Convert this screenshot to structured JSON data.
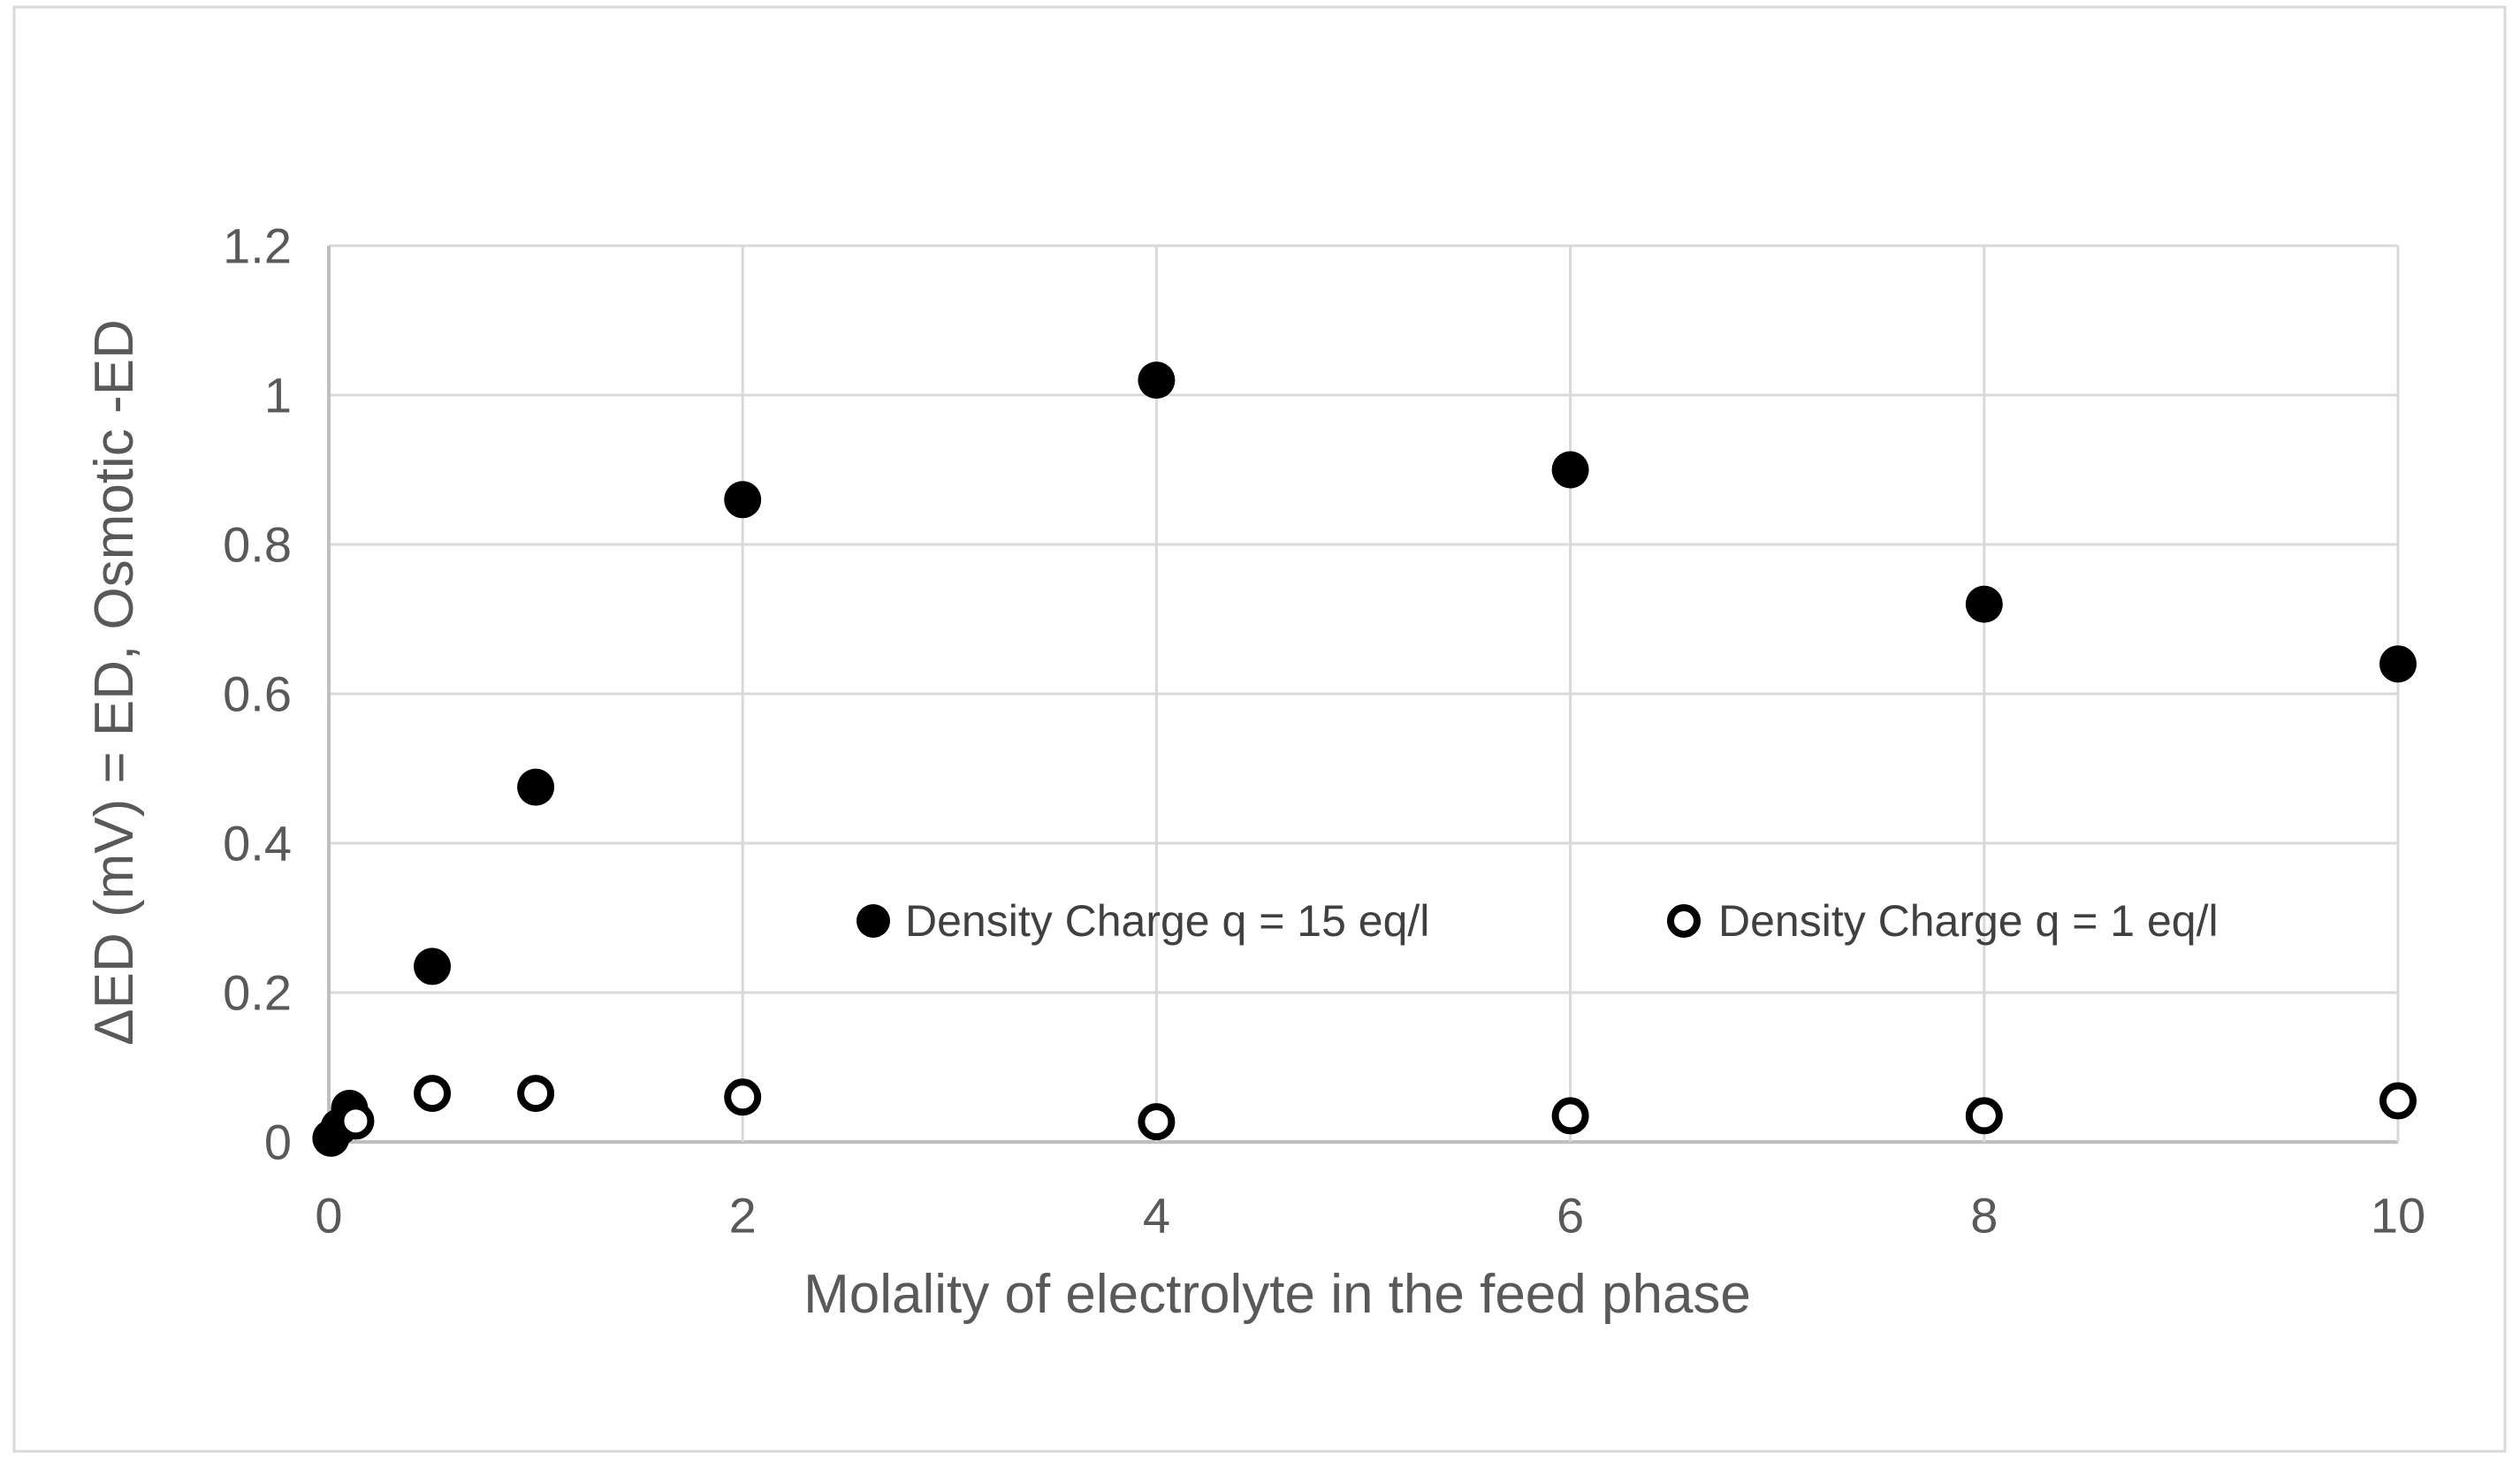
{
  "chart_data": {
    "type": "scatter",
    "title": "",
    "xlabel": "Molality of electrolyte in the feed phase",
    "ylabel": "ΔED (mV) = ED, Osmotic -ED",
    "xlim": [
      0,
      10
    ],
    "ylim": [
      0,
      1.2
    ],
    "x_ticks": [
      0,
      2,
      4,
      6,
      8,
      10
    ],
    "x_tick_labels": [
      "0",
      "2",
      "4",
      "6",
      "8",
      "10"
    ],
    "y_ticks": [
      0,
      0.2,
      0.4,
      0.6,
      0.8,
      1.0,
      1.2
    ],
    "y_tick_labels": [
      "0",
      "0.2",
      "0.4",
      "0.6",
      "0.8",
      "1",
      "1.2"
    ],
    "grid": true,
    "legend_position": "inside-plot-middle",
    "series": [
      {
        "name": "Density Charge q = 15 eq/l",
        "marker": "filled-circle",
        "color": "#000000",
        "points": [
          [
            0.01,
            0.005
          ],
          [
            0.05,
            0.02
          ],
          [
            0.1,
            0.045
          ],
          [
            0.5,
            0.235
          ],
          [
            1,
            0.475
          ],
          [
            2,
            0.86
          ],
          [
            4,
            1.02
          ],
          [
            6,
            0.9
          ],
          [
            8,
            0.72
          ],
          [
            10,
            0.64
          ]
        ]
      },
      {
        "name": "Density Charge q = 1 eq/l",
        "marker": "open-circle",
        "color": "#000000",
        "points": [
          [
            0.13,
            0.028
          ],
          [
            0.5,
            0.065
          ],
          [
            1,
            0.065
          ],
          [
            2,
            0.06
          ],
          [
            4,
            0.027
          ],
          [
            6,
            0.035
          ],
          [
            8,
            0.035
          ],
          [
            10,
            0.055
          ]
        ]
      }
    ]
  },
  "colors": {
    "background": "#ffffff",
    "border": "#d9d9d9",
    "gridline": "#d9d9d9",
    "axis_line": "#bfbfbf",
    "tick_text": "#595959",
    "legend_text": "#404040",
    "marker": "#000000"
  }
}
